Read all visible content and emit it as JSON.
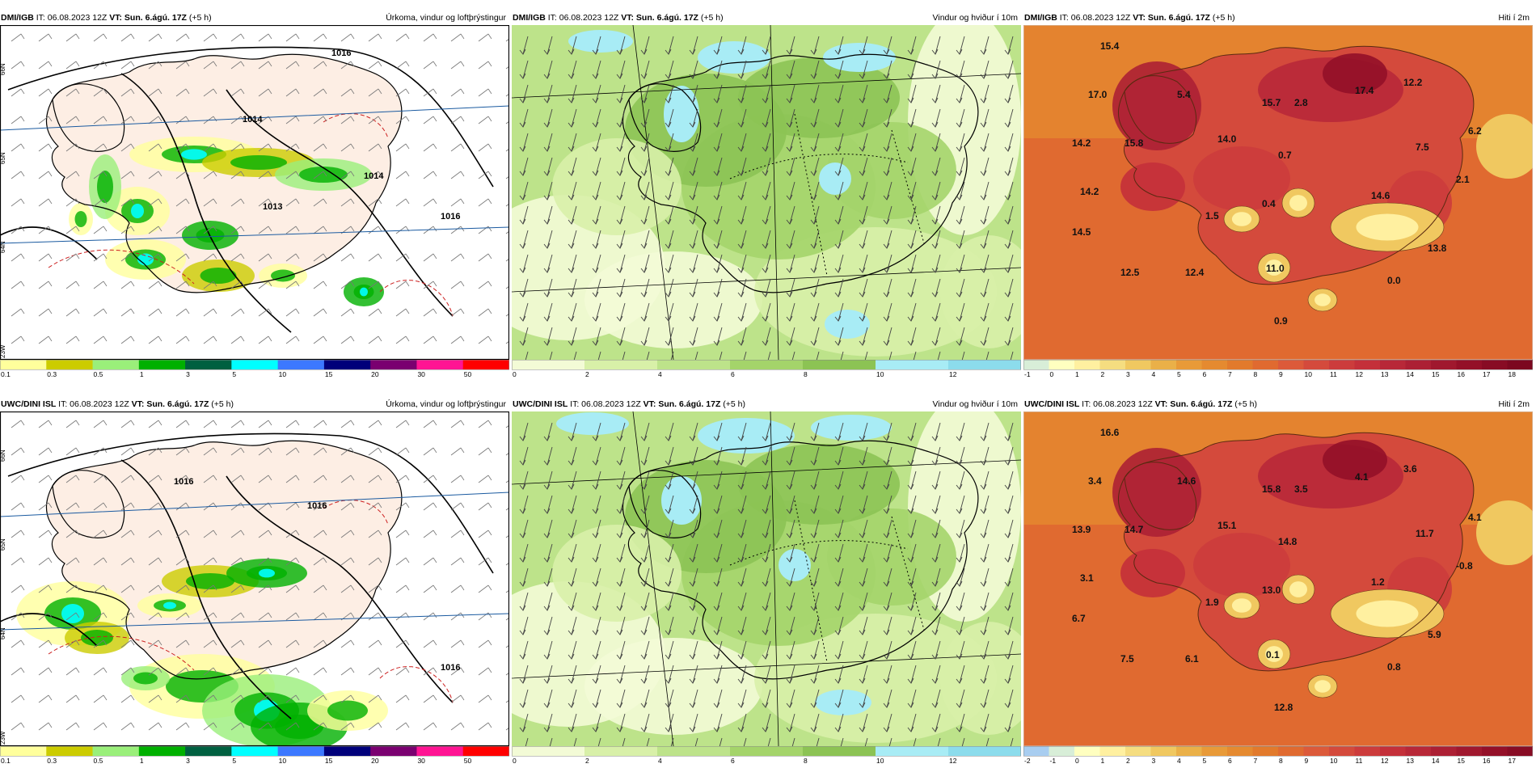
{
  "panels": [
    {
      "id": "p1",
      "model": "DMI/IGB",
      "it": "IT: 06.08.2023 12Z",
      "vt": "VT: Sun. 6.ágú. 17Z",
      "lead": "(+5 h)",
      "title": "Úrkoma, vindur og loftþrýstingur",
      "type": "precip",
      "legend": [
        "0.1",
        "0.3",
        "0.5",
        "1",
        "3",
        "5",
        "10",
        "15",
        "20",
        "30",
        "50"
      ],
      "isobars": [
        "1016",
        "1014",
        "1013",
        "1014",
        "1016"
      ],
      "lat_labels": [
        "66N",
        "65N",
        "64N"
      ],
      "lon_label": "23W"
    },
    {
      "id": "p2",
      "model": "DMI/IGB",
      "it": "IT: 06.08.2023 12Z",
      "vt": "VT: Sun. 6.ágú. 17Z",
      "lead": "(+5 h)",
      "title": "Vindur og hviður í 10m",
      "type": "wind",
      "legend": [
        "0",
        "2",
        "4",
        "6",
        "8",
        "10",
        "12"
      ]
    },
    {
      "id": "p3",
      "model": "DMI/IGB",
      "it": "IT: 06.08.2023 12Z",
      "vt": "VT: Sun. 6.ágú. 17Z",
      "lead": "(+5 h)",
      "title": "Hiti í 2m",
      "type": "temp",
      "legend": [
        "-1",
        "0",
        "1",
        "2",
        "3",
        "4",
        "5",
        "6",
        "7",
        "8",
        "9",
        "10",
        "11",
        "12",
        "13",
        "14",
        "15",
        "16",
        "17",
        "18"
      ],
      "values": [
        "15.4",
        "17.0",
        "5.4",
        "14.2",
        "15.8",
        "14.2",
        "14.5",
        "12.5",
        "12.4",
        "1.5",
        "0.4",
        "11.0",
        "14.0",
        "15.7",
        "2.8",
        "0.7",
        "17.4",
        "12.2",
        "7.5",
        "6.2",
        "2.1",
        "14.6",
        "13.8",
        "0.0",
        "0.9"
      ]
    },
    {
      "id": "p4",
      "model": "UWC/DINI ISL",
      "it": "IT: 06.08.2023 12Z",
      "vt": "VT: Sun. 6.ágú. 17Z",
      "lead": "(+5 h)",
      "title": "Úrkoma, vindur og loftþrýstingur",
      "type": "precip",
      "legend": [
        "0.1",
        "0.3",
        "0.5",
        "1",
        "3",
        "5",
        "10",
        "15",
        "20",
        "30",
        "50"
      ],
      "isobars": [
        "1016",
        "1016",
        "1016"
      ],
      "lat_labels": [
        "66N",
        "65N",
        "64N"
      ],
      "lon_label": "23W"
    },
    {
      "id": "p5",
      "model": "UWC/DINI ISL",
      "it": "IT: 06.08.2023 12Z",
      "vt": "VT: Sun. 6.ágú. 17Z",
      "lead": "(+5 h)",
      "title": "Vindur og hviður í 10m",
      "type": "wind",
      "legend": [
        "0",
        "2",
        "4",
        "6",
        "8",
        "10",
        "12"
      ]
    },
    {
      "id": "p6",
      "model": "UWC/DINI ISL",
      "it": "IT: 06.08.2023 12Z",
      "vt": "VT: Sun. 6.ágú. 17Z",
      "lead": "(+5 h)",
      "title": "Hiti í 2m",
      "type": "temp",
      "legend": [
        "-2",
        "-1",
        "0",
        "1",
        "2",
        "3",
        "4",
        "5",
        "6",
        "7",
        "8",
        "9",
        "10",
        "11",
        "12",
        "13",
        "14",
        "15",
        "16",
        "17"
      ],
      "values": [
        "16.6",
        "3.4",
        "14.6",
        "13.9",
        "14.7",
        "3.1",
        "6.7",
        "7.5",
        "6.1",
        "1.9",
        "13.0",
        "0.1",
        "15.1",
        "15.8",
        "3.5",
        "14.8",
        "4.1",
        "3.6",
        "11.7",
        "4.1",
        "-0.8",
        "1.2",
        "5.9",
        "0.8",
        "12.8"
      ]
    }
  ],
  "colors": {
    "precip": [
      "#ffff9c",
      "#cccc00",
      "#9aef7a",
      "#00b000",
      "#006040",
      "#00ffff",
      "#3c78ff",
      "#00007a",
      "#7a0070",
      "#ff1493",
      "#ff0000"
    ],
    "wind": [
      "#f3fbd6",
      "#d8f0a8",
      "#bde38a",
      "#a4d46a",
      "#8cc354",
      "#a8ecf5",
      "#8cdcec",
      "#6ec8d6"
    ],
    "temp": [
      "#d8eed8",
      "#ffffc0",
      "#fff0a0",
      "#f5dd80",
      "#f0c860",
      "#eab048",
      "#e89a38",
      "#e58a30",
      "#e27a2c",
      "#e06a30",
      "#dc5a3a",
      "#d44a3c",
      "#cc3c3c",
      "#c4303a",
      "#b82838",
      "#ac2034",
      "#a0182e",
      "#941028",
      "#880c24",
      "#7c0820"
    ],
    "temp6": [
      "#a8cdf0",
      "#d8eed8",
      "#ffffc0",
      "#fff0a0",
      "#f5dd80",
      "#f0c860",
      "#eab048",
      "#e89a38",
      "#e58a30",
      "#e27a2c",
      "#e06a30",
      "#dc5a3a",
      "#d44a3c",
      "#cc3c3c",
      "#c4303a",
      "#b82838",
      "#ac2034",
      "#a0182e",
      "#941028",
      "#880c24"
    ],
    "land": "#fdeee4",
    "coast": "#000000"
  }
}
